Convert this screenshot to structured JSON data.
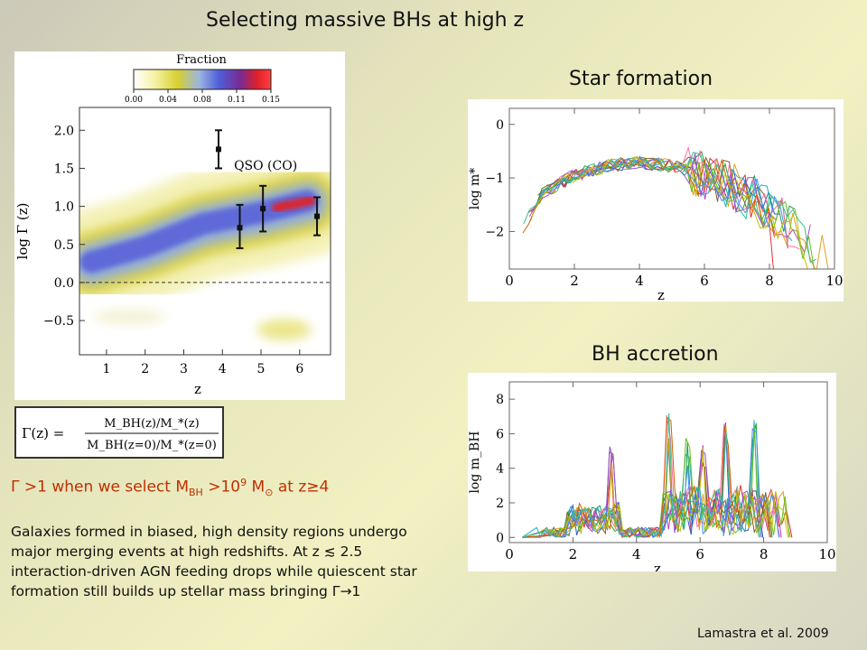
{
  "slide": {
    "title": "Selecting massive BHs at high z",
    "star_formation_label": "Star formation",
    "bh_accretion_label": "BH accretion",
    "formula_lhs": "Γ(z) =",
    "formula_numerator": "M_BH(z)/M_*(z)",
    "formula_denominator": "M_BH(z=0)/M_*(z=0)",
    "condition": {
      "prefix": "Γ >1 when we select  M",
      "sub_bh": "BH",
      "mid1": " >10",
      "sup_9": "9",
      "mid2": " M",
      "sun": "⊙",
      "suffix": "  at z≥4"
    },
    "description": "Galaxies formed in biased, high density regions undergo major merging events at high redshifts. At  z  ≲ 2.5 interaction-driven AGN feeding drops while quiescent star formation still builds up stellar mass bringing Γ→1",
    "credit": "Lamastra et al. 2009"
  },
  "chart_data": [
    {
      "type": "heatmap",
      "colorbar_title": "Fraction",
      "colorbar_ticks": [
        "0.00",
        "0.04",
        "0.08",
        "0.11",
        "0.15"
      ],
      "xlabel": "z",
      "ylabel": "log  Γ (z)",
      "x_ticks": [
        "1",
        "2",
        "3",
        "4",
        "5",
        "6"
      ],
      "y_ticks": [
        "2.0",
        "1.5",
        "1.0",
        "0.5",
        "0.0",
        "−0.5"
      ],
      "xlim": [
        0.3,
        6.8
      ],
      "ylim": [
        -0.95,
        2.3
      ],
      "annotation": "QSO (CO)",
      "qso_points": [
        {
          "z": 3.9,
          "v": 1.75,
          "lo": 1.5,
          "hi": 2.0
        },
        {
          "z": 4.45,
          "v": 0.72,
          "lo": 0.45,
          "hi": 1.02
        },
        {
          "z": 5.05,
          "v": 0.97,
          "lo": 0.67,
          "hi": 1.27
        },
        {
          "z": 6.45,
          "v": 0.87,
          "lo": 0.62,
          "hi": 1.12
        }
      ],
      "density_ridge": {
        "x": [
          0.6,
          2.0,
          3.5,
          5.0,
          6.2
        ],
        "y": [
          0.25,
          0.45,
          0.75,
          0.9,
          1.05
        ]
      }
    },
    {
      "type": "line",
      "title": "Star formation",
      "xlabel": "z",
      "ylabel": "log  m*",
      "x_ticks": [
        "0",
        "2",
        "4",
        "6",
        "8",
        "10"
      ],
      "y_ticks": [
        "0",
        "−1",
        "−2"
      ],
      "xlim": [
        0,
        10
      ],
      "ylim": [
        -2.7,
        0.3
      ],
      "series_count": 14,
      "mean_curve": {
        "x": [
          0.4,
          1,
          2,
          3,
          4,
          5,
          6,
          7,
          8,
          9.4
        ],
        "y": [
          -1.95,
          -1.3,
          -0.95,
          -0.78,
          -0.7,
          -0.78,
          -0.95,
          -1.2,
          -1.6,
          -2.35
        ]
      }
    },
    {
      "type": "line",
      "title": "BH accretion",
      "xlabel": "z",
      "ylabel": "log  m_BH",
      "x_ticks": [
        "0",
        "2",
        "4",
        "6",
        "8",
        "10"
      ],
      "y_ticks": [
        "0",
        "2",
        "4",
        "6",
        "8"
      ],
      "xlim": [
        0,
        10
      ],
      "ylim": [
        -0.3,
        9
      ],
      "series_count": 14,
      "peaks": [
        {
          "z": 3.2,
          "v": 5.7
        },
        {
          "z": 5.0,
          "v": 7.2
        },
        {
          "z": 5.6,
          "v": 5.8
        },
        {
          "z": 6.1,
          "v": 5.5
        },
        {
          "z": 6.8,
          "v": 6.7
        },
        {
          "z": 7.7,
          "v": 6.8
        }
      ]
    }
  ]
}
